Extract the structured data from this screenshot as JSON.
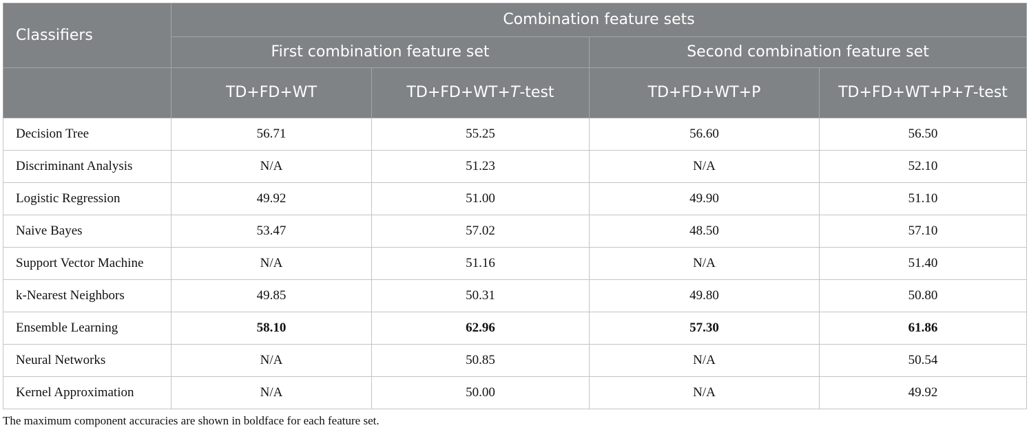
{
  "header": {
    "classifiers": "Classifiers",
    "combination": "Combination feature sets",
    "first_set": "First combination feature set",
    "second_set": "Second combination feature set",
    "columns": [
      {
        "pre": "TD+FD+WT",
        "italic": "",
        "post": ""
      },
      {
        "pre": "TD+FD+WT+",
        "italic": "T",
        "post": "-test"
      },
      {
        "pre": "TD+FD+WT+P",
        "italic": "",
        "post": ""
      },
      {
        "pre": "TD+FD+WT+P+",
        "italic": "T",
        "post": "-test"
      }
    ]
  },
  "rows": [
    {
      "name": "Decision Tree",
      "values": [
        "56.71",
        "55.25",
        "56.60",
        "56.50"
      ],
      "bold": false
    },
    {
      "name": "Discriminant Analysis",
      "values": [
        "N/A",
        "51.23",
        "N/A",
        "52.10"
      ],
      "bold": false
    },
    {
      "name": "Logistic Regression",
      "values": [
        "49.92",
        "51.00",
        "49.90",
        "51.10"
      ],
      "bold": false
    },
    {
      "name": "Naive Bayes",
      "values": [
        "53.47",
        "57.02",
        "48.50",
        "57.10"
      ],
      "bold": false
    },
    {
      "name": "Support Vector Machine",
      "values": [
        "N/A",
        "51.16",
        "N/A",
        "51.40"
      ],
      "bold": false
    },
    {
      "name": "k-Nearest Neighbors",
      "values": [
        "49.85",
        "50.31",
        "49.80",
        "50.80"
      ],
      "bold": false
    },
    {
      "name": "Ensemble Learning",
      "values": [
        "58.10",
        "62.96",
        "57.30",
        "61.86"
      ],
      "bold": true
    },
    {
      "name": "Neural Networks",
      "values": [
        "N/A",
        "50.85",
        "N/A",
        "50.54"
      ],
      "bold": false
    },
    {
      "name": "Kernel Approximation",
      "values": [
        "N/A",
        "50.00",
        "N/A",
        "49.92"
      ],
      "bold": false
    }
  ],
  "caption": "The maximum component accuracies are shown in boldface for each feature set.",
  "colors": {
    "header_bg": "#7f8385",
    "header_text": "#ffffff",
    "border": "#c4c4c4"
  }
}
